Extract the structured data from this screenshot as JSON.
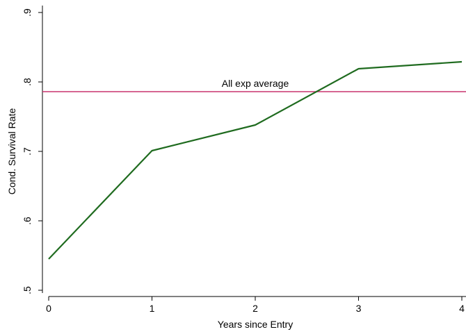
{
  "chart_data": {
    "type": "line",
    "title": "",
    "xlabel": "Years since Entry",
    "ylabel": "Cond. Survival Rate",
    "xlim": [
      0,
      4
    ],
    "ylim": [
      0.5,
      0.9
    ],
    "x_ticks": [
      0,
      1,
      2,
      3,
      4
    ],
    "x_tick_labels": [
      "0",
      "1",
      "2",
      "3",
      "4"
    ],
    "y_ticks": [
      0.5,
      0.6,
      0.7,
      0.8,
      0.9
    ],
    "y_tick_labels": [
      ".5",
      ".6",
      ".7",
      ".8",
      ".9"
    ],
    "grid": false,
    "series": [
      {
        "x": [
          0,
          1,
          2,
          3,
          4
        ],
        "values": [
          0.545,
          0.701,
          0.738,
          0.819,
          0.829
        ],
        "color": "#1f6b1f"
      }
    ],
    "reference_lines": [
      {
        "orientation": "horizontal",
        "value": 0.786,
        "label": "All exp average",
        "color": "#c8336e"
      }
    ]
  }
}
